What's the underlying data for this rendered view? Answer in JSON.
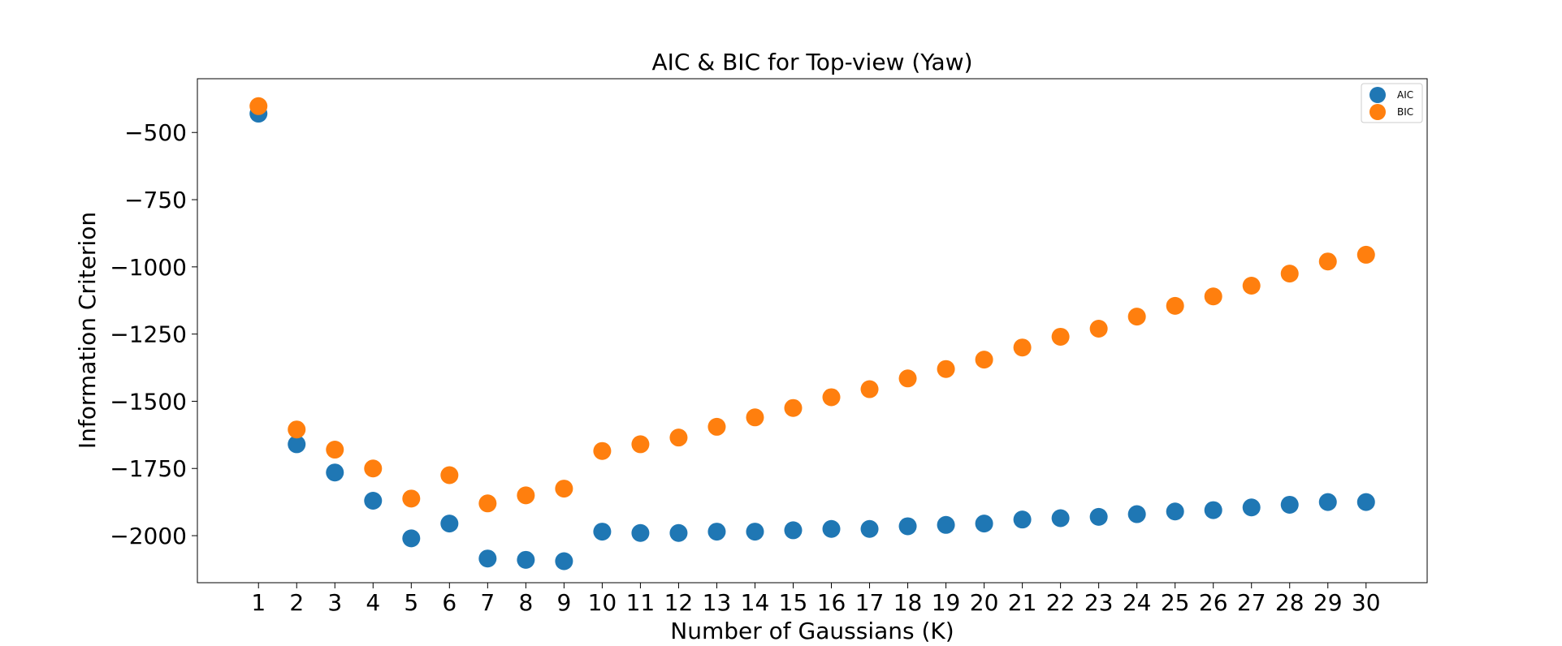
{
  "chart_data": {
    "type": "scatter",
    "title": "AIC & BIC for Top-view (Yaw)",
    "xlabel": "Number of Gaussians (K)",
    "ylabel": "Information Criterion",
    "xlim": [
      -0.6,
      31.6
    ],
    "ylim": [
      -2175,
      -300
    ],
    "x_ticks": [
      1,
      2,
      3,
      4,
      5,
      6,
      7,
      8,
      9,
      10,
      11,
      12,
      13,
      14,
      15,
      16,
      17,
      18,
      19,
      20,
      21,
      22,
      23,
      24,
      25,
      26,
      27,
      28,
      29,
      30
    ],
    "y_ticks": [
      -2000,
      -1750,
      -1500,
      -1250,
      -1000,
      -750,
      -500
    ],
    "y_tick_labels": [
      "−2000",
      "−1750",
      "−1500",
      "−1250",
      "−1000",
      "−750",
      "−500"
    ],
    "legend_position": "top-right",
    "grid": false,
    "series": [
      {
        "name": "AIC",
        "color": "#1f77b4",
        "x": [
          1,
          2,
          3,
          4,
          5,
          6,
          7,
          8,
          9,
          10,
          11,
          12,
          13,
          14,
          15,
          16,
          17,
          18,
          19,
          20,
          21,
          22,
          23,
          24,
          25,
          26,
          27,
          28,
          29,
          30
        ],
        "values": [
          -430,
          -1660,
          -1765,
          -1870,
          -2010,
          -1955,
          -2085,
          -2090,
          -2095,
          -1985,
          -1990,
          -1990,
          -1985,
          -1985,
          -1980,
          -1975,
          -1975,
          -1965,
          -1960,
          -1955,
          -1940,
          -1935,
          -1930,
          -1920,
          -1910,
          -1905,
          -1895,
          -1885,
          -1875,
          -1875
        ]
      },
      {
        "name": "BIC",
        "color": "#ff7f0e",
        "x": [
          1,
          2,
          3,
          4,
          5,
          6,
          7,
          8,
          9,
          10,
          11,
          12,
          13,
          14,
          15,
          16,
          17,
          18,
          19,
          20,
          21,
          22,
          23,
          24,
          25,
          26,
          27,
          28,
          29,
          30
        ],
        "values": [
          -402,
          -1605,
          -1680,
          -1750,
          -1862,
          -1775,
          -1880,
          -1850,
          -1825,
          -1685,
          -1660,
          -1635,
          -1595,
          -1560,
          -1525,
          -1485,
          -1455,
          -1415,
          -1380,
          -1345,
          -1300,
          -1260,
          -1230,
          -1185,
          -1145,
          -1110,
          -1070,
          -1025,
          -980,
          -955
        ]
      }
    ]
  }
}
